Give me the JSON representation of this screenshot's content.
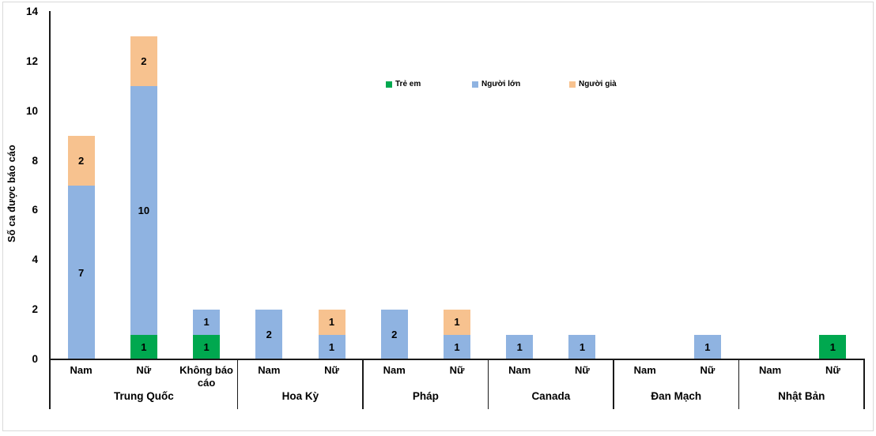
{
  "chart_data": {
    "type": "bar",
    "stacked": true,
    "title": "",
    "ylabel": "Số ca được báo cáo",
    "xlabel": "",
    "ylim": [
      0,
      14
    ],
    "yticks": [
      0,
      2,
      4,
      6,
      8,
      10,
      12,
      14
    ],
    "grid": false,
    "legend_position": "top-center-inside",
    "series": [
      {
        "name": "Trẻ em",
        "color": "#00A84F"
      },
      {
        "name": "Người lớn",
        "color": "#8FB3E1"
      },
      {
        "name": "Người già",
        "color": "#F7C28F"
      }
    ],
    "groups": [
      {
        "label": "Trung Quốc",
        "bars": [
          {
            "label": "Nam",
            "values": [
              0,
              7,
              2
            ]
          },
          {
            "label": "Nữ",
            "values": [
              1,
              10,
              2
            ]
          },
          {
            "label": "Không báo cáo",
            "values": [
              1,
              1,
              0
            ]
          }
        ]
      },
      {
        "label": "Hoa Kỳ",
        "bars": [
          {
            "label": "Nam",
            "values": [
              0,
              2,
              0
            ]
          },
          {
            "label": "Nữ",
            "values": [
              0,
              1,
              1
            ]
          }
        ]
      },
      {
        "label": "Pháp",
        "bars": [
          {
            "label": "Nam",
            "values": [
              0,
              2,
              0
            ]
          },
          {
            "label": "Nữ",
            "values": [
              0,
              1,
              1
            ]
          }
        ]
      },
      {
        "label": "Canada",
        "bars": [
          {
            "label": "Nam",
            "values": [
              0,
              1,
              0
            ]
          },
          {
            "label": "Nữ",
            "values": [
              0,
              1,
              0
            ]
          }
        ]
      },
      {
        "label": "Đan Mạch",
        "bars": [
          {
            "label": "Nam",
            "values": [
              0,
              0,
              0
            ]
          },
          {
            "label": "Nữ",
            "values": [
              0,
              1,
              0
            ]
          }
        ]
      },
      {
        "label": "Nhật Bản",
        "bars": [
          {
            "label": "Nam",
            "values": [
              0,
              0,
              0
            ]
          },
          {
            "label": "Nữ",
            "values": [
              1,
              0,
              0
            ]
          }
        ]
      }
    ]
  }
}
